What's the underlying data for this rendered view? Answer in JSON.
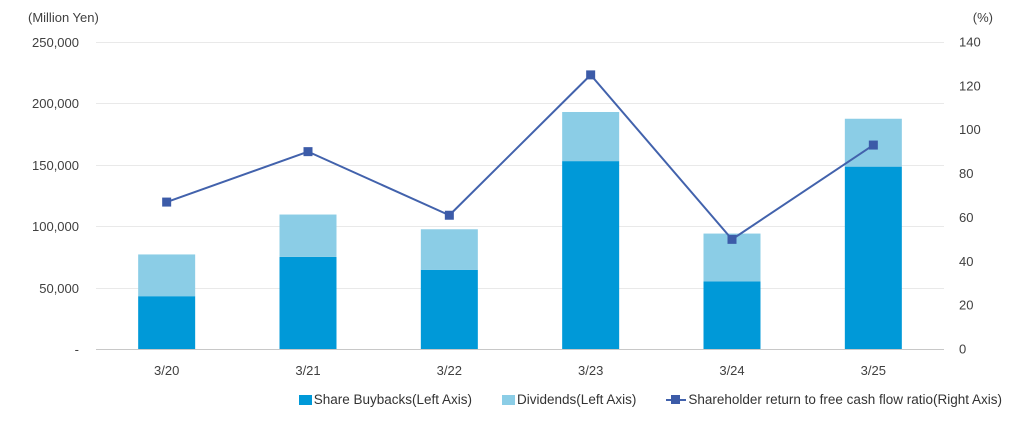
{
  "header": {
    "left_axis_unit": "(Million Yen)",
    "right_axis_unit": "(%)"
  },
  "chart_data": {
    "type": "combo (stacked bar + line)",
    "title": "",
    "categories": [
      "3/20",
      "3/21",
      "3/22",
      "3/23",
      "3/24",
      "3/25"
    ],
    "series": [
      {
        "name": "Share Buybacks(Left Axis)",
        "type": "bar",
        "stack": "returns",
        "axis": "left",
        "color": "#0099d8",
        "values": [
          43000,
          75000,
          64500,
          153000,
          55000,
          148500
        ]
      },
      {
        "name": "Dividends(Left Axis)",
        "type": "bar",
        "stack": "returns",
        "axis": "left",
        "color": "#8bcde6",
        "values": [
          34000,
          34500,
          33000,
          40000,
          39000,
          39000
        ]
      },
      {
        "name": "Shareholder return to free cash flow ratio(Right Axis)",
        "type": "line",
        "axis": "right",
        "color": "#4262ac",
        "marker": "square",
        "marker_color": "#3c5ba8",
        "values": [
          67,
          90,
          61,
          125,
          50,
          93
        ]
      }
    ],
    "left_axis": {
      "title": "(Million Yen)",
      "min": 0,
      "max": 250000,
      "tick_values": [
        250000,
        200000,
        150000,
        100000,
        50000,
        0
      ],
      "tick_labels": [
        "250,000",
        "200,000",
        "150,000",
        "100,000",
        "50,000",
        "-"
      ]
    },
    "right_axis": {
      "title": "(%)",
      "min": 0,
      "max": 140,
      "tick_values": [
        140,
        120,
        100,
        80,
        60,
        40,
        20,
        0
      ],
      "tick_labels": [
        "140",
        "120",
        "100",
        "80",
        "60",
        "40",
        "20",
        "0"
      ]
    },
    "grid": true,
    "legend_position": "bottom",
    "colors": {
      "gridline": "#e9e9e9",
      "axis_line": "#c8c8c8",
      "text": "#404040"
    }
  }
}
